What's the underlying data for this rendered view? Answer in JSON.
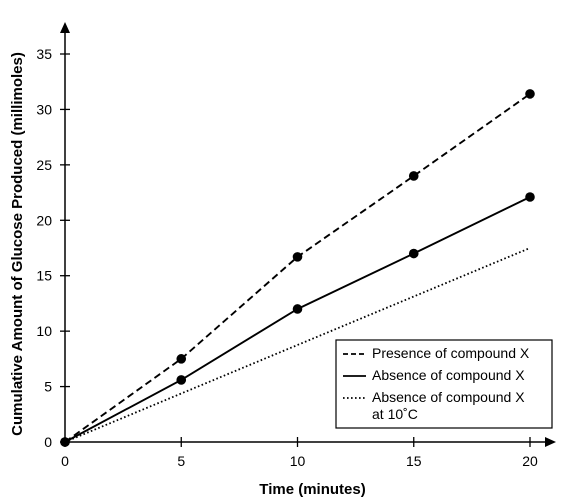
{
  "chart_data": {
    "type": "line",
    "title": "",
    "xlabel": "Time (minutes)",
    "ylabel": "Cumulative Amount of Glucose Produced (millimoles)",
    "xlim": [
      0,
      21.5
    ],
    "ylim": [
      0,
      37.5
    ],
    "x_ticks": [
      0,
      5,
      10,
      15,
      20
    ],
    "x_tick_labels": [
      "0",
      "5",
      "10",
      "15",
      "20"
    ],
    "y_ticks": [
      0,
      5,
      10,
      15,
      20,
      25,
      30,
      35
    ],
    "y_tick_labels": [
      "0",
      "5",
      "10",
      "15",
      "20",
      "25",
      "30",
      "35"
    ],
    "grid": false,
    "legend_position": "bottom-right",
    "series": [
      {
        "name": "Presence of compound X",
        "line_style": "dashed",
        "markers": true,
        "x": [
          0,
          5,
          10,
          15,
          20
        ],
        "y": [
          0,
          7.5,
          16.7,
          24.0,
          31.4
        ]
      },
      {
        "name": "Absence of compound X",
        "line_style": "solid",
        "markers": true,
        "x": [
          0,
          5,
          10,
          15,
          20
        ],
        "y": [
          0,
          5.6,
          12.0,
          17.0,
          22.1
        ]
      },
      {
        "name_lines": [
          "Absence of compound X",
          "at 10˚C"
        ],
        "line_style": "dotted",
        "markers": false,
        "x": [
          0,
          20
        ],
        "y": [
          0,
          17.5
        ]
      }
    ],
    "colors": {
      "line": "#000000",
      "background": "#ffffff"
    }
  }
}
